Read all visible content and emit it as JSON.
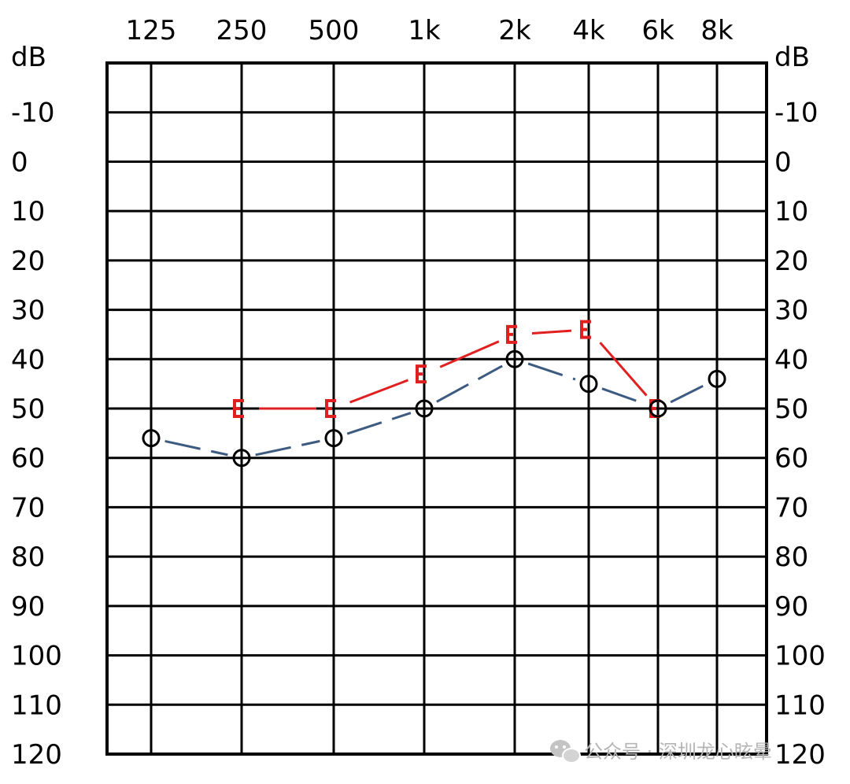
{
  "chart_data": {
    "type": "line",
    "y_unit_label": "dB",
    "x_tick_labels": [
      "125",
      "250",
      "500",
      "1k",
      "2k",
      "4k",
      "6k",
      "8k"
    ],
    "y_tick_labels": [
      "-10",
      "0",
      "10",
      "20",
      "30",
      "40",
      "50",
      "60",
      "70",
      "80",
      "90",
      "100",
      "110",
      "120"
    ],
    "ylim": [
      -20,
      120
    ],
    "y_inverted": true,
    "grid": true,
    "series": [
      {
        "marker": "circle",
        "color": "#3d5a80",
        "line_style": "dashed",
        "x": [
          "125",
          "250",
          "500",
          "1k",
          "2k",
          "4k",
          "6k",
          "8k"
        ],
        "values": [
          56,
          60,
          56,
          50,
          40,
          45,
          50,
          44
        ]
      },
      {
        "marker": "bracket-left",
        "color": "#e02020",
        "line_style": "solid-partial",
        "x": [
          "250",
          "500",
          "1k",
          "2k",
          "4k",
          "6k"
        ],
        "values": [
          50,
          50,
          43,
          35,
          34,
          50
        ]
      }
    ]
  },
  "watermark": {
    "icon": "wechat-icon",
    "text": "公众号 · 深圳龙心眩晕"
  }
}
